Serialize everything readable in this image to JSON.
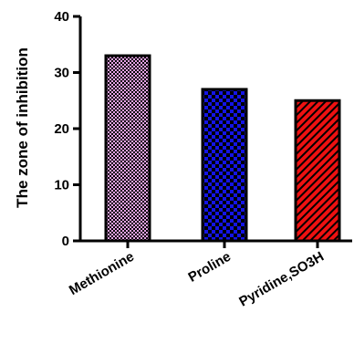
{
  "chart_data": {
    "type": "bar",
    "title": "",
    "xlabel": "",
    "ylabel": "The zone of inhibition",
    "categories": [
      "Methionine",
      "Proline",
      "Pyridine,SO3H"
    ],
    "values": [
      33,
      27,
      25
    ],
    "ylim": [
      0,
      40
    ],
    "yticks": [
      0,
      10,
      20,
      30,
      40
    ],
    "grid": false,
    "legend": "none",
    "bars": [
      {
        "fill": "#e6a3e6",
        "pattern": "checker-fine",
        "pattern_color": "#000000"
      },
      {
        "fill": "#1414e6",
        "pattern": "checker",
        "pattern_color": "#000000"
      },
      {
        "fill": "#ee1111",
        "pattern": "diagonal-hatch",
        "pattern_color": "#000000"
      }
    ]
  }
}
